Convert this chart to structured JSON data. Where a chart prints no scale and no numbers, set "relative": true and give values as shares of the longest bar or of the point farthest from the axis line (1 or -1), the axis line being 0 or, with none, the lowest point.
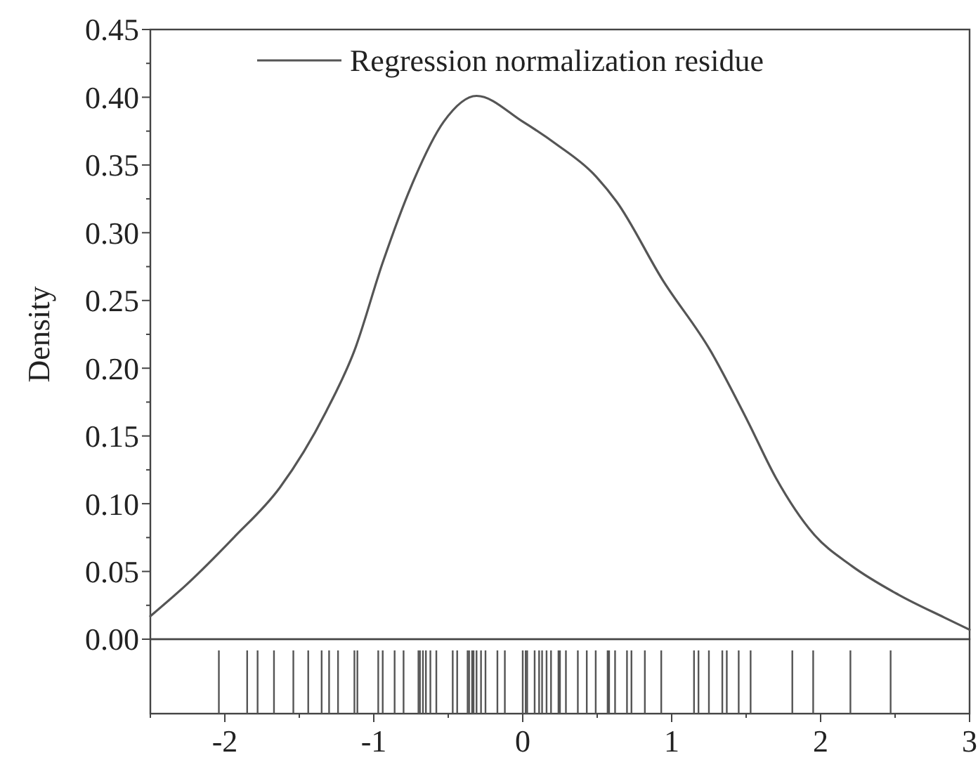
{
  "chart_data": [
    {
      "type": "line",
      "ylabel": "Density",
      "xlim": [
        -2.5,
        3
      ],
      "ylim": [
        0,
        0.45
      ],
      "xticks": [
        -2,
        -1,
        0,
        1,
        2,
        3
      ],
      "yticks": [
        {
          "value": 0,
          "label": "0.00"
        },
        {
          "value": 0.05,
          "label": "0.05"
        },
        {
          "value": 0.1,
          "label": "0.10"
        },
        {
          "value": 0.15,
          "label": "0.15"
        },
        {
          "value": 0.2,
          "label": "0.20"
        },
        {
          "value": 0.25,
          "label": "0.25"
        },
        {
          "value": 0.3,
          "label": "0.30"
        },
        {
          "value": 0.35,
          "label": "0.35"
        },
        {
          "value": 0.4,
          "label": "0.40"
        },
        {
          "value": 0.45,
          "label": "0.45"
        }
      ],
      "tick_labels": "y",
      "legend": "top",
      "line_style": "solid",
      "series": [
        {
          "name": "Regression normalization residue",
          "color": "#555555",
          "x": [
            -2.5,
            -2.26,
            -1.94,
            -1.63,
            -1.32,
            -1.13,
            -0.94,
            -0.75,
            -0.53,
            -0.31,
            0,
            0.23,
            0.47,
            0.63,
            0.94,
            1.26,
            1.51,
            1.7,
            1.95,
            2.21,
            2.52,
            2.83,
            3.0
          ],
          "values": [
            0.017,
            0.04,
            0.075,
            0.112,
            0.168,
            0.213,
            0.278,
            0.334,
            0.382,
            0.401,
            0.382,
            0.365,
            0.344,
            0.323,
            0.265,
            0.213,
            0.161,
            0.119,
            0.078,
            0.054,
            0.033,
            0.016,
            0.007
          ]
        }
      ]
    },
    {
      "type": "bar",
      "relative": true,
      "xlim": [
        -2.5,
        3
      ],
      "xticks": [
        -2,
        -1,
        0,
        1,
        2,
        3
      ],
      "tick_labels": "x",
      "series": [
        {
          "color": "#555555",
          "x": [
            -2.04,
            -1.85,
            -1.78,
            -1.67,
            -1.54,
            -1.44,
            -1.35,
            -1.3,
            -1.24,
            -1.13,
            -1.11,
            -0.97,
            -0.94,
            -0.86,
            -0.8,
            -0.7,
            -0.69,
            -0.67,
            -0.65,
            -0.62,
            -0.58,
            -0.47,
            -0.44,
            -0.37,
            -0.36,
            -0.34,
            -0.33,
            -0.31,
            -0.28,
            -0.25,
            -0.17,
            -0.12,
            0,
            0.02,
            0.03,
            0.08,
            0.11,
            0.13,
            0.16,
            0.19,
            0.24,
            0.25,
            0.29,
            0.37,
            0.43,
            0.49,
            0.57,
            0.58,
            0.62,
            0.7,
            0.73,
            0.82,
            0.93,
            1.15,
            1.18,
            1.25,
            1.34,
            1.37,
            1.45,
            1.53,
            1.81,
            1.95,
            2.2,
            2.47
          ],
          "values": [
            1,
            1,
            1,
            1,
            1,
            1,
            1,
            1,
            1,
            1,
            1,
            1,
            1,
            1,
            1,
            1,
            1,
            1,
            1,
            1,
            1,
            1,
            1,
            1,
            1,
            1,
            1,
            1,
            1,
            1,
            1,
            1,
            1,
            1,
            1,
            1,
            1,
            1,
            1,
            1,
            1,
            1,
            1,
            1,
            1,
            1,
            1,
            1,
            1,
            1,
            1,
            1,
            1,
            1,
            1,
            1,
            1,
            1,
            1,
            1,
            1,
            1,
            1,
            1
          ]
        }
      ]
    }
  ]
}
